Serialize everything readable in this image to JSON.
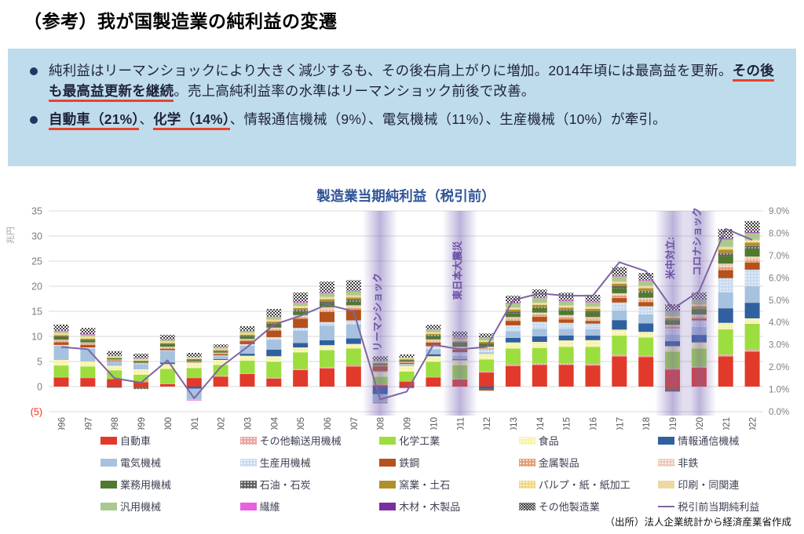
{
  "page": {
    "title": "（参考）我が国製造業の純利益の変遷"
  },
  "summary_box": {
    "bullets": [
      {
        "segments": [
          {
            "text": "純利益はリーマンショックにより大きく減少するも、その後右肩上がりに増加。2014年頃には最高益を更新。",
            "emphasis": false
          },
          {
            "text": "その後も最高益更新を継続",
            "emphasis": true
          },
          {
            "text": "。売上高純利益率の水準はリーマンショック前後で改善。",
            "emphasis": false
          }
        ]
      },
      {
        "segments": [
          {
            "text": "自動車（21%）",
            "emphasis": true
          },
          {
            "text": "、",
            "emphasis": false
          },
          {
            "text": "化学（14%）",
            "emphasis": true
          },
          {
            "text": "、情報通信機械（9%）、電気機械（11%）、生産機械（10%）が牽引。",
            "emphasis": false
          }
        ]
      }
    ]
  },
  "chart_data": {
    "type": "bar",
    "subtype": "stacked-bar-with-line",
    "title": "製造業当期純利益（税引前）",
    "y_left_unit": "兆円",
    "y_left_ticks": [
      "35",
      "30",
      "25",
      "20",
      "15",
      "10",
      "5",
      "0"
    ],
    "y_left_negative_tick": "(5)",
    "y_left_range": [
      -5,
      35
    ],
    "y_right_ticks": [
      "9.0%",
      "8.0%",
      "7.0%",
      "6.0%",
      "5.0%",
      "4.0%",
      "3.0%",
      "2.0%",
      "1.0%",
      "0.0%"
    ],
    "y_right_range": [
      0,
      9
    ],
    "grid": true,
    "categories": [
      1996,
      1997,
      1998,
      1999,
      2000,
      2001,
      2002,
      2003,
      2004,
      2005,
      2006,
      2007,
      2008,
      2009,
      2010,
      2011,
      2012,
      2013,
      2014,
      2015,
      2016,
      2017,
      2018,
      2019,
      2020,
      2021,
      2022
    ],
    "series": [
      {
        "name": "自動車",
        "color": "#E23A2A",
        "pattern": "solid",
        "values": [
          1.8,
          1.7,
          1.5,
          0.9,
          0.5,
          1.7,
          2.0,
          2.5,
          1.6,
          3.3,
          3.6,
          4.0,
          0.3,
          1.0,
          1.8,
          1.4,
          2.8,
          4.1,
          4.3,
          4.3,
          4.2,
          6.0,
          5.9,
          3.4,
          3.8,
          6.0,
          7.0
        ]
      },
      {
        "name": "その他輸送用機械",
        "color": "#EBA6A0",
        "pattern": "dots",
        "values": [
          0.1,
          0.1,
          0.05,
          0.05,
          0.1,
          0.1,
          0.12,
          0.15,
          0.15,
          0.2,
          0.25,
          0.3,
          0.15,
          0.1,
          0.15,
          0.15,
          0.2,
          0.3,
          0.3,
          0.3,
          0.3,
          0.35,
          0.3,
          0.25,
          0.2,
          0.4,
          0.4
        ]
      },
      {
        "name": "化学工業",
        "color": "#9CDE3F",
        "pattern": "solid",
        "values": [
          2.3,
          2.2,
          1.7,
          1.4,
          2.9,
          1.9,
          2.2,
          2.5,
          3.2,
          3.3,
          3.4,
          3.3,
          1.5,
          1.9,
          3.0,
          2.7,
          2.4,
          3.2,
          3.1,
          3.3,
          3.4,
          3.8,
          3.6,
          3.3,
          3.6,
          5.0,
          5.1
        ]
      },
      {
        "name": "食品",
        "color": "#F6F3AB",
        "pattern": "dots",
        "values": [
          1.1,
          1.0,
          0.9,
          1.1,
          1.0,
          1.0,
          1.0,
          1.0,
          1.1,
          1.0,
          1.0,
          0.9,
          0.8,
          1.1,
          1.1,
          1.0,
          1.1,
          1.2,
          1.2,
          1.3,
          1.35,
          1.2,
          1.1,
          1.1,
          1.2,
          1.3,
          1.1
        ]
      },
      {
        "name": "情報通信機械",
        "color": "#30609F",
        "pattern": "solid",
        "values": [
          0,
          0,
          0,
          0,
          0.3,
          -0.4,
          0.15,
          0.4,
          1.3,
          0.9,
          1.0,
          1.1,
          -1.5,
          -0.2,
          0.4,
          0.2,
          -0.45,
          0.9,
          1.1,
          1.0,
          0.9,
          1.9,
          1.7,
          1.0,
          1.5,
          2.9,
          3.1
        ]
      },
      {
        "name": "電気機械",
        "color": "#A7C2DF",
        "pattern": "solid",
        "values": [
          2.8,
          2.6,
          0.8,
          1.0,
          2.3,
          -2.2,
          0.6,
          1.6,
          2.0,
          2.4,
          2.9,
          2.8,
          -1.6,
          0.3,
          1.0,
          0.7,
          0.3,
          1.3,
          1.5,
          1.3,
          1.3,
          1.9,
          1.8,
          1.3,
          1.6,
          3.2,
          3.3
        ]
      },
      {
        "name": "生産用機械",
        "color": "#C9DBF0",
        "pattern": "dots",
        "values": [
          0.2,
          0.2,
          0.1,
          0.1,
          0.15,
          0.1,
          0.15,
          0.3,
          0.5,
          0.6,
          0.7,
          0.8,
          0.3,
          0.1,
          0.6,
          0.7,
          0.6,
          1.2,
          1.4,
          1.2,
          1.1,
          1.6,
          1.6,
          1.2,
          1.3,
          2.8,
          3.3
        ]
      },
      {
        "name": "鉄鋼",
        "color": "#B4511C",
        "pattern": "solid",
        "values": [
          0.55,
          0.5,
          0.15,
          -0.3,
          0.3,
          0.1,
          0.25,
          0.6,
          1.3,
          1.8,
          2.0,
          2.1,
          1.0,
          0.2,
          0.7,
          0.5,
          -0.35,
          0.9,
          1.0,
          0.7,
          0.5,
          0.9,
          0.8,
          -0.7,
          0.3,
          1.6,
          1.4
        ]
      },
      {
        "name": "金属製品",
        "color": "#E3A075",
        "pattern": "dots",
        "values": [
          0.3,
          0.3,
          0.15,
          0.15,
          0.25,
          0.15,
          0.2,
          0.25,
          0.3,
          0.35,
          0.4,
          0.4,
          0.2,
          0.15,
          0.3,
          0.3,
          0.3,
          0.4,
          0.45,
          0.45,
          0.45,
          0.5,
          0.5,
          0.45,
          0.45,
          0.6,
          0.6
        ]
      },
      {
        "name": "非鉄",
        "color": "#EDCBBA",
        "pattern": "dots",
        "values": [
          0.2,
          0.2,
          0.05,
          0.05,
          0.15,
          -0.1,
          0.1,
          0.2,
          0.3,
          0.4,
          0.55,
          0.5,
          -0.1,
          0.1,
          0.35,
          0.3,
          0.25,
          0.35,
          0.4,
          0.4,
          0.35,
          0.45,
          0.4,
          0.3,
          0.4,
          0.7,
          0.6
        ]
      },
      {
        "name": "業務用機械",
        "color": "#4F7A2F",
        "pattern": "solid",
        "values": [
          0.5,
          0.45,
          0.25,
          0.3,
          0.5,
          0.25,
          0.3,
          0.5,
          0.6,
          0.7,
          0.8,
          0.75,
          0.3,
          0.3,
          0.6,
          0.55,
          0.5,
          0.8,
          0.9,
          0.9,
          0.9,
          1.0,
          1.0,
          0.9,
          1.0,
          1.5,
          1.6
        ]
      },
      {
        "name": "石油・石炭",
        "color": "#606060",
        "pattern": "dots",
        "values": [
          0.15,
          0.1,
          -0.15,
          -0.2,
          0.1,
          0.1,
          0.1,
          0.15,
          0.3,
          0.35,
          0.4,
          0.4,
          -0.1,
          0.1,
          0.25,
          0.3,
          0.2,
          0.3,
          0.2,
          0.15,
          0.3,
          0.4,
          0.4,
          -0.3,
          0.15,
          0.6,
          0.5
        ]
      },
      {
        "name": "窯業・土石",
        "color": "#B08F2D",
        "pattern": "solid",
        "values": [
          0.25,
          0.2,
          0.1,
          0.1,
          0.15,
          0.1,
          0.12,
          0.2,
          0.3,
          0.35,
          0.4,
          0.4,
          0.15,
          0.1,
          0.25,
          0.25,
          0.25,
          0.4,
          0.45,
          0.45,
          0.45,
          0.5,
          0.5,
          0.45,
          0.5,
          0.7,
          0.7
        ]
      },
      {
        "name": "パルプ・紙・紙加工",
        "color": "#F2D781",
        "pattern": "dots",
        "values": [
          0.15,
          0.15,
          0.05,
          0.08,
          0.1,
          0.08,
          0.1,
          0.12,
          0.15,
          0.15,
          0.17,
          0.15,
          0.05,
          0.1,
          0.15,
          0.12,
          0.1,
          0.15,
          0.15,
          0.18,
          0.2,
          0.2,
          0.2,
          0.2,
          0.2,
          0.25,
          0.25
        ]
      },
      {
        "name": "印刷・同関連",
        "color": "#EFD9A2",
        "pattern": "solid",
        "values": [
          0.3,
          0.3,
          0.2,
          0.2,
          0.25,
          0.2,
          0.2,
          0.25,
          0.25,
          0.3,
          0.3,
          0.3,
          0.15,
          0.15,
          0.2,
          0.2,
          0.2,
          0.25,
          0.25,
          0.25,
          0.25,
          0.25,
          0.25,
          0.2,
          0.2,
          0.3,
          0.3
        ]
      },
      {
        "name": "汎用機械",
        "color": "#ABC98F",
        "pattern": "solid",
        "values": [
          0.3,
          0.3,
          0.15,
          0.15,
          0.25,
          0.12,
          0.2,
          0.3,
          0.5,
          0.6,
          0.7,
          0.75,
          0.3,
          0.1,
          0.55,
          0.5,
          0.5,
          0.8,
          0.9,
          0.85,
          0.8,
          1.0,
          1.0,
          0.9,
          0.9,
          1.4,
          1.3
        ]
      },
      {
        "name": "繊維",
        "color": "#E95FE2",
        "pattern": "solid",
        "values": [
          0.12,
          0.1,
          -0.1,
          0.05,
          0.08,
          -0.1,
          0.05,
          0.07,
          0.08,
          0.1,
          0.1,
          0.1,
          -0.05,
          -0.15,
          0.07,
          0.06,
          0.05,
          0.1,
          0.1,
          0.12,
          0.1,
          0.12,
          0.12,
          0.1,
          0.08,
          0.15,
          0.15
        ]
      },
      {
        "name": "木材・木製品",
        "color": "#7B2F9E",
        "pattern": "solid",
        "values": [
          0.04,
          0.04,
          0.02,
          0.02,
          0.03,
          0.02,
          0.02,
          0.03,
          0.03,
          0.04,
          0.05,
          0.05,
          0.02,
          0.02,
          0.03,
          0.03,
          0.03,
          0.05,
          0.05,
          0.05,
          0.05,
          0.05,
          0.05,
          0.05,
          0.06,
          0.1,
          0.1
        ]
      },
      {
        "name": "その他製造業",
        "color": "#3F3F3F",
        "pattern": "checker",
        "values": [
          1.2,
          1.25,
          0.9,
          0.9,
          0.9,
          0.8,
          0.55,
          0.9,
          1.5,
          1.9,
          2.2,
          2.1,
          0.8,
          0.6,
          0.8,
          1.0,
          0.8,
          1.4,
          1.6,
          1.5,
          1.4,
          1.7,
          1.4,
          1.3,
          1.3,
          1.9,
          2.2
        ]
      }
    ],
    "line": {
      "name": "税引前当期純利益",
      "color": "#8064A2",
      "axis": "right",
      "values_percent": [
        2.9,
        2.8,
        1.5,
        1.3,
        2.3,
        0.6,
        2.0,
        2.9,
        3.9,
        4.3,
        4.8,
        4.5,
        0.55,
        0.9,
        3.0,
        2.8,
        2.9,
        5.0,
        5.3,
        5.2,
        5.2,
        6.7,
        6.3,
        4.6,
        5.4,
        8.2,
        7.7
      ]
    },
    "events": [
      {
        "label": "リーマンショック",
        "year": 2008
      },
      {
        "label": "東日本大震災",
        "year": 2011
      },
      {
        "label": "米中対立:",
        "year": 2019
      },
      {
        "label": "コロナショック",
        "year": 2020
      }
    ],
    "legend_position": "bottom"
  },
  "colors": {
    "summary_bg": "#BFDCEC",
    "bullet_dot": "#1F3864",
    "emphasis_underline": "#E8432E",
    "chart_title": "#2F5597",
    "axis_text": "#7F7F7F",
    "negative_tick": "#FF2A1A",
    "gridline": "#D9D9D9",
    "event_band": "#7A66B5",
    "event_label": "#6A51A3"
  },
  "source": "（出所）法人企業統計から経済産業省作成"
}
